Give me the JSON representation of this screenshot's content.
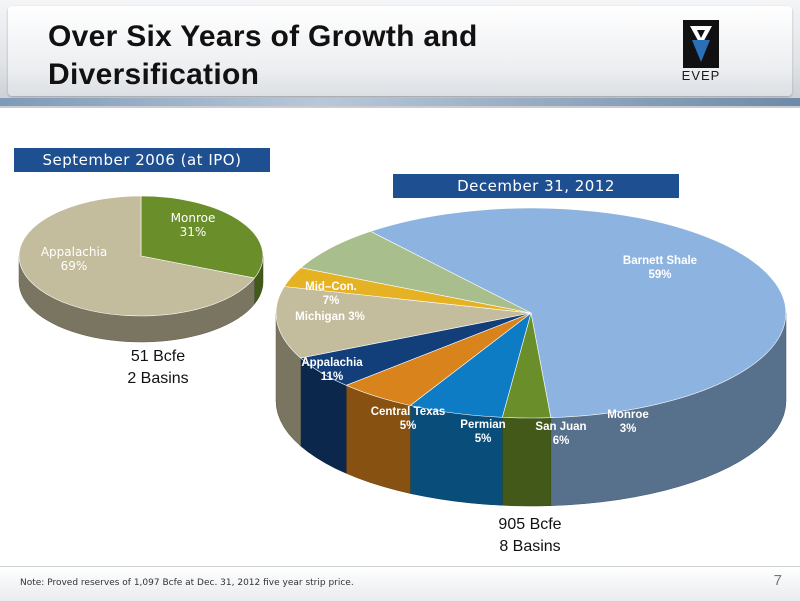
{
  "title": "Over Six Years of Growth and Diversification",
  "logo_text": "EVEP",
  "footer_note": "Note: Proved reserves of 1,097 Bcfe at Dec. 31, 2012 five year strip price.",
  "page_number": "7",
  "chart_data": [
    {
      "type": "pie",
      "title": "September 2006 (at IPO)",
      "slices": [
        {
          "label": "Monroe",
          "pct_label": "31%",
          "value": 31,
          "color": "#6a8f2a"
        },
        {
          "label": "Appalachia",
          "pct_label": "69%",
          "value": 69,
          "color": "#c3bc9d"
        }
      ],
      "caption": [
        "51 Bcfe",
        "2 Basins"
      ]
    },
    {
      "type": "pie",
      "title": "December 31, 2012",
      "slices": [
        {
          "label": "Barnett Shale",
          "pct_label": "59%",
          "value": 59,
          "color": "#8db4e0"
        },
        {
          "label": "Monroe",
          "pct_label": "3%",
          "value": 3,
          "color": "#6a8f2a"
        },
        {
          "label": "San Juan",
          "pct_label": "6%",
          "value": 6,
          "color": "#0e7cc4"
        },
        {
          "label": "Permian",
          "pct_label": "5%",
          "value": 5,
          "color": "#d9831c"
        },
        {
          "label": "Central Texas",
          "pct_label": "5%",
          "value": 5,
          "color": "#123f7a"
        },
        {
          "label": "Appalachia",
          "pct_label": "11%",
          "value": 11,
          "color": "#c3bc9d"
        },
        {
          "label": "Michigan",
          "pct_label": "3%",
          "value": 3,
          "color": "#e5b223"
        },
        {
          "label": "Mid–Con.",
          "pct_label": "7%",
          "value": 7,
          "color": "#a8be8c"
        }
      ],
      "caption": [
        "905 Bcfe",
        "8 Basins"
      ]
    }
  ]
}
